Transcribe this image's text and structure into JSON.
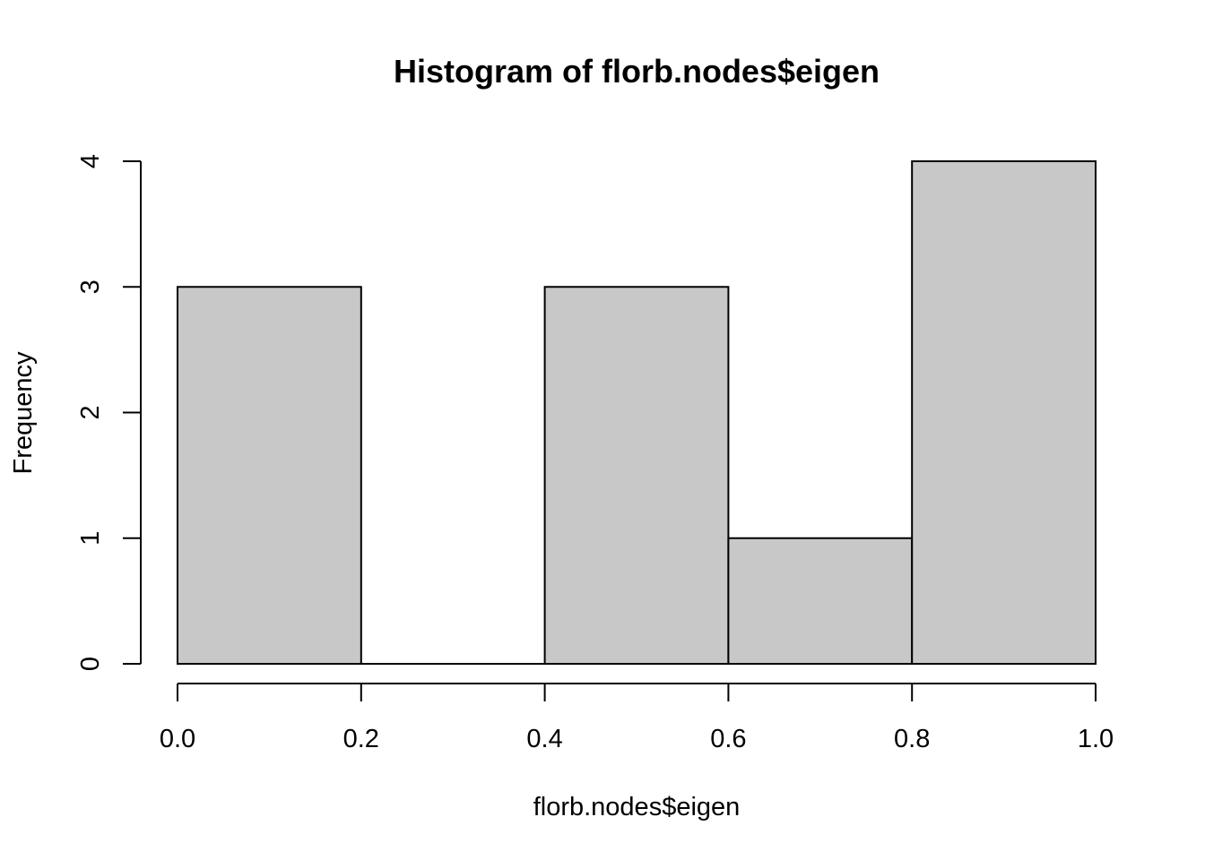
{
  "chart_data": {
    "type": "bar",
    "subtype": "histogram",
    "title": "Histogram of florb.nodes$eigen",
    "xlabel": "florb.nodes$eigen",
    "ylabel": "Frequency",
    "bins": [
      {
        "start": 0.0,
        "end": 0.2,
        "count": 3
      },
      {
        "start": 0.2,
        "end": 0.4,
        "count": 0
      },
      {
        "start": 0.4,
        "end": 0.6,
        "count": 3
      },
      {
        "start": 0.6,
        "end": 0.8,
        "count": 1
      },
      {
        "start": 0.8,
        "end": 1.0,
        "count": 4
      }
    ],
    "xlim": [
      0.0,
      1.0
    ],
    "ylim": [
      0,
      4
    ],
    "x_ticks": [
      "0.0",
      "0.2",
      "0.4",
      "0.6",
      "0.8",
      "1.0"
    ],
    "y_ticks": [
      "0",
      "1",
      "2",
      "3",
      "4"
    ],
    "grid": false,
    "bar_color": "#c8c8c8",
    "edge_color": "#000000"
  }
}
